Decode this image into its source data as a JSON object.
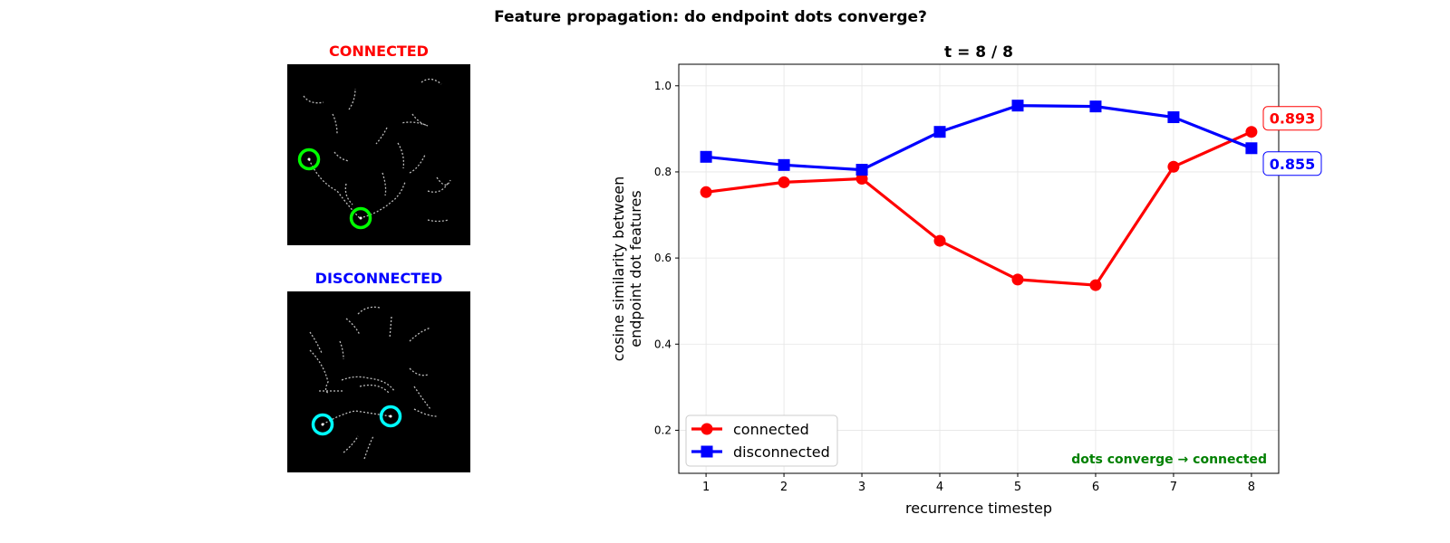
{
  "suptitle": "Feature propagation: do endpoint dots converge?",
  "panels": {
    "connected": {
      "title": "CONNECTED",
      "title_color": "#ff0000",
      "ring_color": "#00ff00"
    },
    "disconnected": {
      "title": "DISCONNECTED",
      "title_color": "#0000ff",
      "ring_color": "#00ffff"
    }
  },
  "chart_data": {
    "type": "line",
    "title": "t = 8 / 8",
    "xlabel": "recurrence timestep",
    "ylabel": "cosine similarity between\nendpoint dot features",
    "ylabel_lines": [
      "cosine similarity between",
      "endpoint dot features"
    ],
    "xlim": [
      0.65,
      8.35
    ],
    "ylim": [
      0.1,
      1.05
    ],
    "xticks": [
      1,
      2,
      3,
      4,
      5,
      6,
      7,
      8
    ],
    "yticks": [
      0.2,
      0.4,
      0.6,
      0.8,
      1.0
    ],
    "ytick_labels": [
      "0.2",
      "0.4",
      "0.6",
      "0.8",
      "1.0"
    ],
    "grid": true,
    "legend_position": "lower-left",
    "x": [
      1,
      2,
      3,
      4,
      5,
      6,
      7,
      8
    ],
    "series": [
      {
        "name": "connected",
        "color": "#ff0000",
        "marker": "circle",
        "values": [
          0.753,
          0.776,
          0.784,
          0.64,
          0.55,
          0.537,
          0.812,
          0.893
        ],
        "end_label": "0.893"
      },
      {
        "name": "disconnected",
        "color": "#0000ff",
        "marker": "square",
        "values": [
          0.835,
          0.816,
          0.805,
          0.893,
          0.954,
          0.952,
          0.927,
          0.855
        ],
        "end_label": "0.855"
      }
    ],
    "annotation": {
      "text": "dots converge → connected",
      "color": "#008000"
    }
  }
}
